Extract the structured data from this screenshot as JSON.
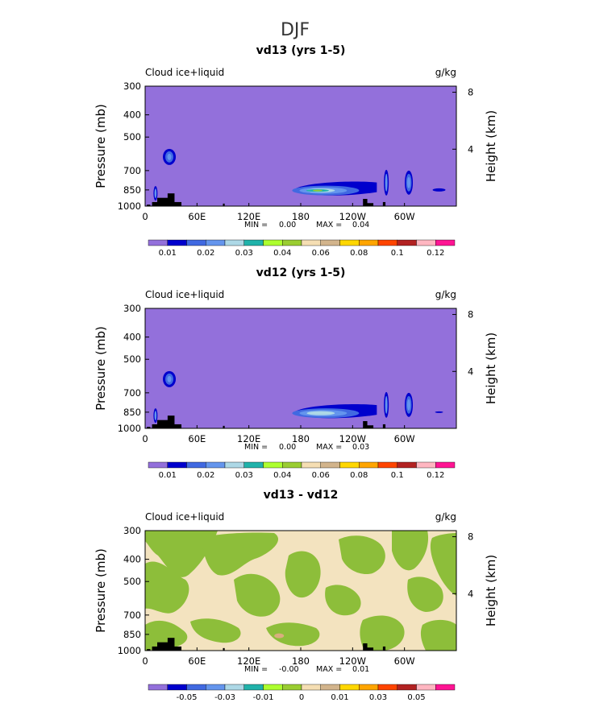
{
  "figure": {
    "title": "DJF"
  },
  "colors": {
    "background_field": "#9370DB",
    "terrain": "#000000",
    "panel3_green": "#8DBE3A",
    "panel3_wheat": "#F3E3BF",
    "panel3_tan": "#D9AE7E"
  },
  "icons": {
    "terrain_mask": "filled-terrain-silhouette"
  },
  "chart_data": [
    {
      "type": "heatmap",
      "title": "vd13 (yrs 1-5)",
      "field_label": "Cloud ice+liquid",
      "units": "g/kg",
      "ylabel": "Pressure (mb)",
      "y2label": "Height (km)",
      "y_ticks": [
        "300",
        "400",
        "500",
        "700",
        "850",
        "1000"
      ],
      "y2_ticks": [
        "8",
        "4"
      ],
      "x_ticks": [
        "0",
        "60E",
        "120E",
        "180",
        "120W",
        "60W"
      ],
      "min_label": "MIN =",
      "min_value": "0.00",
      "max_label": "MAX =",
      "max_value": "0.04",
      "colorbar_labels": [
        "0.01",
        "0.02",
        "0.03",
        "0.04",
        "0.06",
        "0.08",
        "0.1",
        "0.12"
      ],
      "colorbar_colors": [
        "#9370DB",
        "#0000CD",
        "#4169E1",
        "#6495ED",
        "#ADD8E6",
        "#20B2AA",
        "#ADFF2F",
        "#9ACD32",
        "#F5DEB3",
        "#D2B48C",
        "#FFD700",
        "#FFA500",
        "#FF4500",
        "#B22222",
        "#FFB6C1",
        "#FF1493"
      ],
      "features": [
        {
          "name": "blob-30E-600mb",
          "lon": 28,
          "pressure": 610,
          "max_level": "0.02"
        },
        {
          "name": "blob-12E-880mb",
          "lon": 12,
          "pressure": 880,
          "max_level": "0.02"
        },
        {
          "name": "streak-180-140W-850mb",
          "lon_start": 175,
          "lon_end": 265,
          "pressure": 850,
          "max_level": "0.04"
        },
        {
          "name": "blob-80W-800mb",
          "lon": 280,
          "pressure": 790,
          "max_level": "0.02"
        },
        {
          "name": "blob-55W-780mb",
          "lon": 305,
          "pressure": 790,
          "max_level": "0.03"
        },
        {
          "name": "blob-10W-850mb",
          "lon": 340,
          "pressure": 850,
          "max_level": "0.01"
        }
      ]
    },
    {
      "type": "heatmap",
      "title": "vd12 (yrs 1-5)",
      "field_label": "Cloud ice+liquid",
      "units": "g/kg",
      "ylabel": "Pressure (mb)",
      "y2label": "Height (km)",
      "y_ticks": [
        "300",
        "400",
        "500",
        "700",
        "850",
        "1000"
      ],
      "y2_ticks": [
        "8",
        "4"
      ],
      "x_ticks": [
        "0",
        "60E",
        "120E",
        "180",
        "120W",
        "60W"
      ],
      "min_label": "MIN =",
      "min_value": "0.00",
      "max_label": "MAX =",
      "max_value": "0.03",
      "colorbar_labels": [
        "0.01",
        "0.02",
        "0.03",
        "0.04",
        "0.06",
        "0.08",
        "0.1",
        "0.12"
      ],
      "colorbar_colors": [
        "#9370DB",
        "#0000CD",
        "#4169E1",
        "#6495ED",
        "#ADD8E6",
        "#20B2AA",
        "#ADFF2F",
        "#9ACD32",
        "#F5DEB3",
        "#D2B48C",
        "#FFD700",
        "#FFA500",
        "#FF4500",
        "#B22222",
        "#FFB6C1",
        "#FF1493"
      ],
      "features": [
        {
          "name": "blob-30E-600mb",
          "lon": 28,
          "pressure": 610,
          "max_level": "0.02"
        },
        {
          "name": "blob-12E-880mb",
          "lon": 12,
          "pressure": 880,
          "max_level": "0.02"
        },
        {
          "name": "streak-180-140W-850mb",
          "lon_start": 175,
          "lon_end": 265,
          "pressure": 850,
          "max_level": "0.03"
        },
        {
          "name": "blob-80W-800mb",
          "lon": 280,
          "pressure": 790,
          "max_level": "0.02"
        },
        {
          "name": "blob-55W-780mb",
          "lon": 305,
          "pressure": 790,
          "max_level": "0.03"
        },
        {
          "name": "blob-10W-850mb",
          "lon": 340,
          "pressure": 850,
          "max_level": "0.01"
        }
      ]
    },
    {
      "type": "heatmap",
      "title": "vd13 - vd12",
      "field_label": "Cloud ice+liquid",
      "units": "g/kg",
      "ylabel": "Pressure (mb)",
      "y2label": "Height (km)",
      "y_ticks": [
        "300",
        "400",
        "500",
        "700",
        "850",
        "1000"
      ],
      "y2_ticks": [
        "8",
        "4"
      ],
      "x_ticks": [
        "0",
        "60E",
        "120E",
        "180",
        "120W",
        "60W"
      ],
      "min_label": "MIN =",
      "min_value": "-0.00",
      "max_label": "MAX =",
      "max_value": "0.01",
      "colorbar_labels": [
        "-0.05",
        "-0.03",
        "-0.01",
        "0",
        "0.01",
        "0.03",
        "0.05"
      ],
      "colorbar_colors": [
        "#9370DB",
        "#0000CD",
        "#4169E1",
        "#6495ED",
        "#ADD8E6",
        "#20B2AA",
        "#ADFF2F",
        "#9ACD32",
        "#F5DEB3",
        "#D2B48C",
        "#FFD700",
        "#FFA500",
        "#FF4500",
        "#B22222",
        "#FFB6C1",
        "#FF1493"
      ],
      "features": [
        {
          "name": "mixed-field",
          "description_levels": [
            "-0.01 to 0",
            "0 to 0.01"
          ]
        },
        {
          "name": "positive-spot-155E-860mb",
          "lon": 155,
          "pressure": 860,
          "max_level": "0.01"
        }
      ]
    }
  ]
}
